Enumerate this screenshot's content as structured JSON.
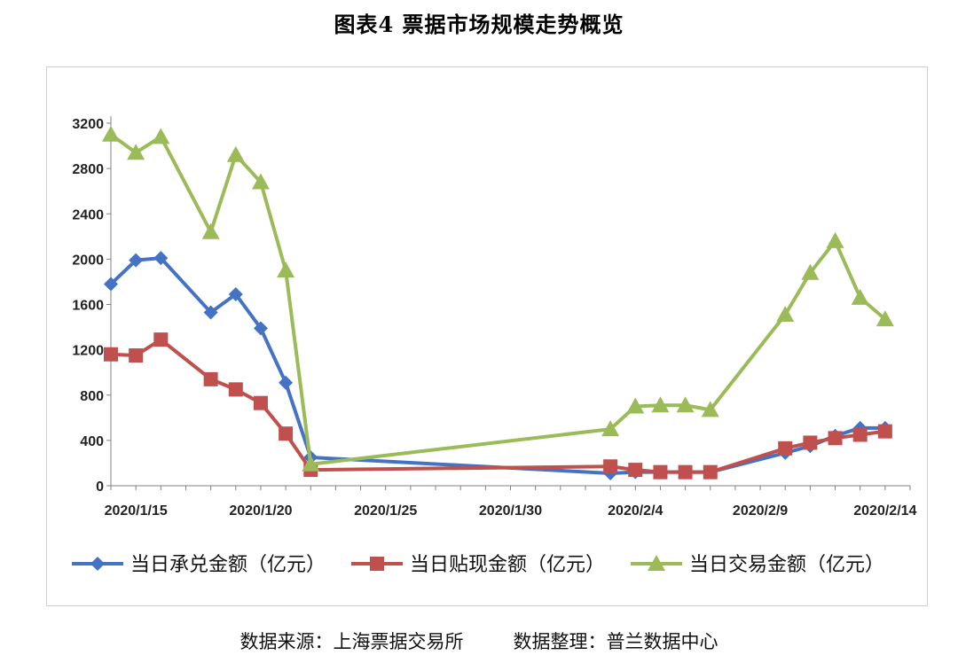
{
  "title": "图表4 票据市场规模走势概览",
  "footer": {
    "source": "数据来源：上海票据交易所",
    "compiler": "数据整理：普兰数据中心"
  },
  "chart_data": {
    "type": "line",
    "xlabel": "",
    "ylabel": "",
    "ylim": [
      0,
      3200
    ],
    "yticks": [
      0,
      400,
      800,
      1200,
      1600,
      2000,
      2400,
      2800,
      3200
    ],
    "x_tick_labels": [
      "2020/1/15",
      "2020/1/20",
      "2020/1/25",
      "2020/1/30",
      "2020/2/4",
      "2020/2/9",
      "2020/2/14"
    ],
    "x_tick_dates": [
      "2020-01-15",
      "2020-01-20",
      "2020-01-25",
      "2020-01-30",
      "2020-02-04",
      "2020-02-09",
      "2020-02-14"
    ],
    "xlim": [
      "2020-01-14",
      "2020-02-15"
    ],
    "grid": false,
    "legend_position": "bottom",
    "x": [
      "2020-01-14",
      "2020-01-15",
      "2020-01-16",
      "2020-01-18",
      "2020-01-19",
      "2020-01-20",
      "2020-01-21",
      "2020-01-22",
      "2020-02-03",
      "2020-02-04",
      "2020-02-05",
      "2020-02-06",
      "2020-02-07",
      "2020-02-10",
      "2020-02-11",
      "2020-02-12",
      "2020-02-13",
      "2020-02-14"
    ],
    "series": [
      {
        "name": "当日承兑金额（亿元）",
        "color": "#4472C4",
        "marker": "diamond",
        "values": [
          1780,
          1990,
          2010,
          1530,
          1690,
          1390,
          910,
          250,
          110,
          120,
          120,
          120,
          120,
          290,
          350,
          440,
          510,
          510
        ]
      },
      {
        "name": "当日贴现金额（亿元）",
        "color": "#C0504D",
        "marker": "square",
        "values": [
          1160,
          1150,
          1290,
          940,
          850,
          730,
          460,
          140,
          170,
          140,
          120,
          120,
          120,
          330,
          380,
          420,
          450,
          480
        ]
      },
      {
        "name": "当日交易金额（亿元）",
        "color": "#9BBB59",
        "marker": "triangle",
        "values": [
          3100,
          2940,
          3080,
          2240,
          2920,
          2680,
          1900,
          190,
          500,
          700,
          710,
          710,
          670,
          1510,
          1880,
          2160,
          1660,
          1470
        ]
      }
    ]
  }
}
